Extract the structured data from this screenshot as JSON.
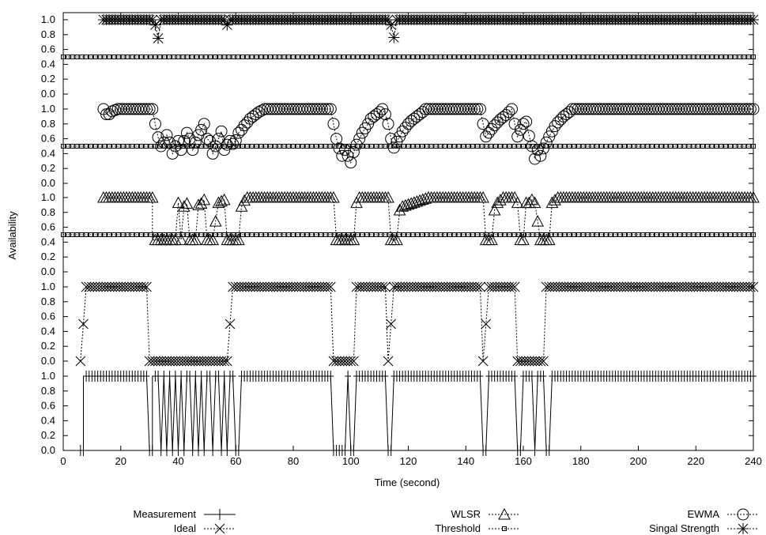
{
  "chart_data": {
    "type": "line",
    "xlabel": "Time (second)",
    "ylabel": "Availability",
    "xlim": [
      0,
      240
    ],
    "x_ticks": [
      0,
      20,
      40,
      60,
      80,
      100,
      120,
      140,
      160,
      180,
      200,
      220,
      240
    ],
    "band_y_ticks": [
      "0.0",
      "0.2",
      "0.4",
      "0.6",
      "0.8",
      "1.0"
    ],
    "grid": false,
    "legend_position": "bottom",
    "legend": [
      "Measurement",
      "WLSR",
      "EWMA",
      "Ideal",
      "Threshold",
      "Singal Strength"
    ],
    "threshold": 0.5,
    "bands": [
      {
        "name": "Measurement",
        "marker": "plus",
        "ylim": [
          0,
          1
        ],
        "segments": [
          [
            6,
            0
          ],
          [
            7,
            0
          ],
          [
            7,
            1
          ],
          [
            29,
            1
          ],
          [
            30,
            0
          ],
          [
            31,
            0
          ],
          [
            31,
            1
          ],
          [
            33,
            1
          ],
          [
            34,
            0
          ],
          [
            35,
            1
          ],
          [
            36,
            0
          ],
          [
            37,
            1
          ],
          [
            38,
            0
          ],
          [
            39,
            1
          ],
          [
            40,
            0
          ],
          [
            41,
            1
          ],
          [
            42,
            0
          ],
          [
            43,
            1
          ],
          [
            44,
            1
          ],
          [
            45,
            0
          ],
          [
            46,
            1
          ],
          [
            47,
            0
          ],
          [
            48,
            1
          ],
          [
            49,
            0
          ],
          [
            50,
            1
          ],
          [
            51,
            1
          ],
          [
            52,
            0
          ],
          [
            53,
            1
          ],
          [
            54,
            1
          ],
          [
            55,
            0
          ],
          [
            56,
            1
          ],
          [
            57,
            0
          ],
          [
            58,
            1
          ],
          [
            59,
            1
          ],
          [
            60,
            0
          ],
          [
            61,
            0
          ],
          [
            62,
            1
          ],
          [
            93,
            1
          ],
          [
            94,
            0
          ],
          [
            95,
            0
          ],
          [
            98,
            0
          ],
          [
            99,
            1
          ],
          [
            100,
            0
          ],
          [
            101,
            0
          ],
          [
            102,
            1
          ],
          [
            112,
            1
          ],
          [
            113,
            0
          ],
          [
            114,
            0
          ],
          [
            115,
            1
          ],
          [
            145,
            1
          ],
          [
            146,
            0
          ],
          [
            147,
            0
          ],
          [
            148,
            1
          ],
          [
            157,
            1
          ],
          [
            158,
            0
          ],
          [
            159,
            0
          ],
          [
            160,
            1
          ],
          [
            163,
            1
          ],
          [
            164,
            0
          ],
          [
            165,
            1
          ],
          [
            167,
            1
          ],
          [
            168,
            0
          ],
          [
            169,
            0
          ],
          [
            170,
            1
          ],
          [
            240,
            1
          ]
        ]
      },
      {
        "name": "Ideal",
        "marker": "cross",
        "ylim": [
          0,
          1
        ],
        "segments": [
          [
            6,
            0
          ],
          [
            8,
            1
          ],
          [
            29,
            1
          ],
          [
            30,
            0
          ],
          [
            57,
            0
          ],
          [
            59,
            1
          ],
          [
            93,
            1
          ],
          [
            94,
            0
          ],
          [
            101,
            0
          ],
          [
            102,
            1
          ],
          [
            112,
            1
          ],
          [
            113,
            0
          ],
          [
            115,
            1
          ],
          [
            145,
            1
          ],
          [
            146,
            0
          ],
          [
            148,
            1
          ],
          [
            157,
            1
          ],
          [
            158,
            0
          ],
          [
            167,
            0
          ],
          [
            168,
            1
          ],
          [
            240,
            1
          ]
        ]
      },
      {
        "name": "WLSR",
        "marker": "triangle",
        "ylim": [
          0.4,
          1
        ],
        "segments": [
          [
            14,
            1
          ],
          [
            31,
            1
          ],
          [
            31,
            0.43
          ],
          [
            39,
            0.43
          ],
          [
            40,
            0.93
          ],
          [
            41,
            0.43
          ],
          [
            42,
            0.88
          ],
          [
            43,
            0.92
          ],
          [
            44,
            0.43
          ],
          [
            46,
            0.43
          ],
          [
            47,
            0.9
          ],
          [
            48,
            0.92
          ],
          [
            49,
            0.97
          ],
          [
            50,
            0.43
          ],
          [
            52,
            0.43
          ],
          [
            54,
            0.93
          ],
          [
            56,
            0.97
          ],
          [
            57,
            0.43
          ],
          [
            61,
            0.43
          ],
          [
            62,
            0.88
          ],
          [
            63,
            0.96
          ],
          [
            64,
            1
          ],
          [
            94,
            1
          ],
          [
            95,
            0.43
          ],
          [
            101,
            0.43
          ],
          [
            102,
            0.93
          ],
          [
            103,
            1
          ],
          [
            113,
            1
          ],
          [
            114,
            0.43
          ],
          [
            116,
            0.43
          ],
          [
            117,
            0.83
          ],
          [
            118,
            0.88
          ],
          [
            127,
            1
          ],
          [
            146,
            1
          ],
          [
            147,
            0.43
          ],
          [
            149,
            0.43
          ],
          [
            150,
            0.83
          ],
          [
            151,
            0.93
          ],
          [
            153,
            1
          ],
          [
            157,
            1
          ],
          [
            158,
            0.93
          ],
          [
            159,
            0.43
          ],
          [
            160,
            0.43
          ],
          [
            161,
            0.93
          ],
          [
            162,
            0.93
          ],
          [
            163,
            0.97
          ],
          [
            164,
            0.93
          ],
          [
            166,
            0.43
          ],
          [
            169,
            0.43
          ],
          [
            170,
            0.93
          ],
          [
            172,
            1
          ],
          [
            240,
            1
          ]
        ]
      },
      {
        "name": "EWMA",
        "marker": "circle",
        "ylim": [
          0,
          1
        ],
        "segments": [
          [
            14,
            1
          ],
          [
            15,
            0.93
          ],
          [
            16,
            0.93
          ],
          [
            17,
            0.97
          ],
          [
            19,
            1
          ],
          [
            31,
            1
          ],
          [
            32,
            0.8
          ],
          [
            33,
            0.62
          ],
          [
            34,
            0.5
          ],
          [
            35,
            0.55
          ],
          [
            36,
            0.65
          ],
          [
            37,
            0.55
          ],
          [
            38,
            0.4
          ],
          [
            39,
            0.5
          ],
          [
            40,
            0.57
          ],
          [
            41,
            0.45
          ],
          [
            42,
            0.57
          ],
          [
            43,
            0.68
          ],
          [
            44,
            0.6
          ],
          [
            45,
            0.45
          ],
          [
            46,
            0.55
          ],
          [
            47,
            0.65
          ],
          [
            48,
            0.72
          ],
          [
            49,
            0.8
          ],
          [
            50,
            0.6
          ],
          [
            51,
            0.57
          ],
          [
            52,
            0.4
          ],
          [
            53,
            0.5
          ],
          [
            54,
            0.6
          ],
          [
            55,
            0.7
          ],
          [
            56,
            0.45
          ],
          [
            57,
            0.52
          ],
          [
            58,
            0.57
          ],
          [
            59,
            0.53
          ],
          [
            60,
            0.58
          ],
          [
            61,
            0.68
          ],
          [
            62,
            0.72
          ],
          [
            63,
            0.78
          ],
          [
            64,
            0.82
          ],
          [
            65,
            0.87
          ],
          [
            66,
            0.9
          ],
          [
            67,
            0.93
          ],
          [
            68,
            0.96
          ],
          [
            70,
            1
          ],
          [
            93,
            1
          ],
          [
            94,
            0.8
          ],
          [
            95,
            0.6
          ],
          [
            96,
            0.47
          ],
          [
            97,
            0.37
          ],
          [
            98,
            0.45
          ],
          [
            99,
            0.37
          ],
          [
            100,
            0.28
          ],
          [
            101,
            0.42
          ],
          [
            102,
            0.52
          ],
          [
            103,
            0.6
          ],
          [
            104,
            0.68
          ],
          [
            105,
            0.74
          ],
          [
            106,
            0.8
          ],
          [
            107,
            0.87
          ],
          [
            108,
            0.9
          ],
          [
            109,
            0.93
          ],
          [
            110,
            0.96
          ],
          [
            111,
            1
          ],
          [
            112,
            0.93
          ],
          [
            113,
            0.8
          ],
          [
            114,
            0.6
          ],
          [
            115,
            0.48
          ],
          [
            116,
            0.56
          ],
          [
            117,
            0.63
          ],
          [
            118,
            0.7
          ],
          [
            119,
            0.75
          ],
          [
            120,
            0.8
          ],
          [
            121,
            0.84
          ],
          [
            122,
            0.87
          ],
          [
            123,
            0.9
          ],
          [
            124,
            0.93
          ],
          [
            125,
            0.96
          ],
          [
            126,
            1
          ],
          [
            145,
            1
          ],
          [
            146,
            0.8
          ],
          [
            147,
            0.63
          ],
          [
            148,
            0.68
          ],
          [
            149,
            0.73
          ],
          [
            150,
            0.78
          ],
          [
            151,
            0.82
          ],
          [
            152,
            0.86
          ],
          [
            153,
            0.89
          ],
          [
            154,
            0.92
          ],
          [
            155,
            0.96
          ],
          [
            156,
            1
          ],
          [
            157,
            0.8
          ],
          [
            158,
            0.63
          ],
          [
            159,
            0.72
          ],
          [
            160,
            0.8
          ],
          [
            161,
            0.83
          ],
          [
            162,
            0.64
          ],
          [
            163,
            0.5
          ],
          [
            164,
            0.33
          ],
          [
            165,
            0.45
          ],
          [
            166,
            0.37
          ],
          [
            167,
            0.47
          ],
          [
            168,
            0.55
          ],
          [
            169,
            0.63
          ],
          [
            170,
            0.7
          ],
          [
            171,
            0.77
          ],
          [
            172,
            0.82
          ],
          [
            173,
            0.86
          ],
          [
            174,
            0.9
          ],
          [
            175,
            0.93
          ],
          [
            176,
            0.96
          ],
          [
            177,
            1
          ],
          [
            240,
            1
          ]
        ]
      },
      {
        "name": "Singal Strength",
        "marker": "star",
        "ylim": [
          0.4,
          1
        ],
        "segments": [
          [
            14,
            1
          ],
          [
            31,
            1
          ],
          [
            32,
            0.93
          ],
          [
            33,
            0.75
          ],
          [
            34,
            1
          ],
          [
            56,
            1
          ],
          [
            57,
            0.93
          ],
          [
            58,
            1
          ],
          [
            113,
            1
          ],
          [
            114,
            0.93
          ],
          [
            115,
            0.76
          ],
          [
            116,
            1
          ],
          [
            240,
            1
          ]
        ]
      }
    ]
  }
}
